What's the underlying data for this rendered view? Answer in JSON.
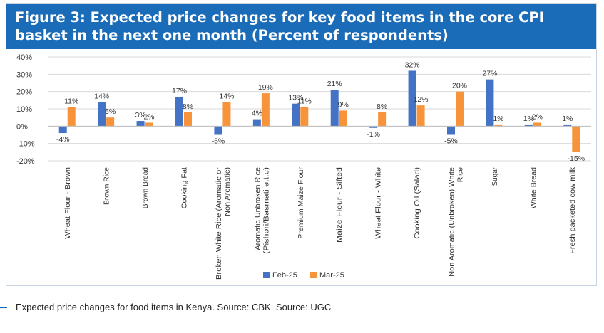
{
  "figure": {
    "title": "Figure 3: Expected price changes for key food items in the core CPI basket in the next one month (Percent of respondents)"
  },
  "caption": "Expected price changes for food items in Kenya. Source: CBK. Source: UGC",
  "colors": {
    "feb": "#4472c4",
    "mar": "#f7943b",
    "banner": "#1b6cb8",
    "grid": "#d9d9d9"
  },
  "chart_data": {
    "type": "bar",
    "title": "Figure 3: Expected price changes for key food items in the core CPI basket in the next one month (Percent of respondents)",
    "categories": [
      "Wheat Flour - Brown",
      "Brown Rice",
      "Brown Bread",
      "Cooking Fat",
      "Broken White Rice (Aromatic or Non Aromatic)",
      "Aromatic Unbroken Rice (Pishori/Basmati e.t.c)",
      "Premium Maize Flour",
      "Maize Flour - Sifted",
      "Wheat Flour - White",
      "Cooking Oil (Salad)",
      "Non Aromatic (Unbroken) White Rice",
      "Sugar",
      "White Bread",
      "Fresh packeted cow milk"
    ],
    "category_lines": [
      [
        "Wheat Flour - Brown"
      ],
      [
        "Brown Rice"
      ],
      [
        "Brown Bread"
      ],
      [
        "Cooking Fat"
      ],
      [
        "Broken White Rice (Aromatic or",
        "Non Aromatic)"
      ],
      [
        "Aromatic Unbroken Rice",
        "(Pishori/Basmati e.t.c)"
      ],
      [
        "Premium Maize Flour"
      ],
      [
        "Maize Flour - Sifted"
      ],
      [
        "Wheat Flour - White"
      ],
      [
        "Cooking Oil (Salad)"
      ],
      [
        "Non Aromatic (Unbroken) White",
        "Rice"
      ],
      [
        "Sugar"
      ],
      [
        "White Bread"
      ],
      [
        "Fresh packeted cow milk"
      ]
    ],
    "series": [
      {
        "name": "Feb-25",
        "values": [
          -4,
          14,
          3,
          17,
          -5,
          4,
          13,
          21,
          -1,
          32,
          -5,
          27,
          1,
          1
        ]
      },
      {
        "name": "Mar-25",
        "values": [
          11,
          5,
          2,
          8,
          14,
          19,
          11,
          9,
          8,
          12,
          20,
          1,
          2,
          -15
        ]
      }
    ],
    "data_labels": [
      [
        "-4%",
        "14%",
        "3%",
        "17%",
        "-5%",
        "4%",
        "13%",
        "21%",
        "-1%",
        "32%",
        "-5%",
        "27%",
        "1%",
        "1%"
      ],
      [
        "11%",
        "5%",
        "2%",
        "8%",
        "14%",
        "19%",
        "11%",
        "9%",
        "8%",
        "12%",
        "20%",
        "1%",
        "2%",
        "-15%"
      ]
    ],
    "yticks": [
      "40%",
      "30%",
      "20%",
      "10%",
      "0%",
      "-10%",
      "-20%"
    ],
    "ytick_values": [
      40,
      30,
      20,
      10,
      0,
      -10,
      -20
    ],
    "ylim": [
      -20,
      40
    ],
    "grid": true,
    "legend": "bottom"
  }
}
